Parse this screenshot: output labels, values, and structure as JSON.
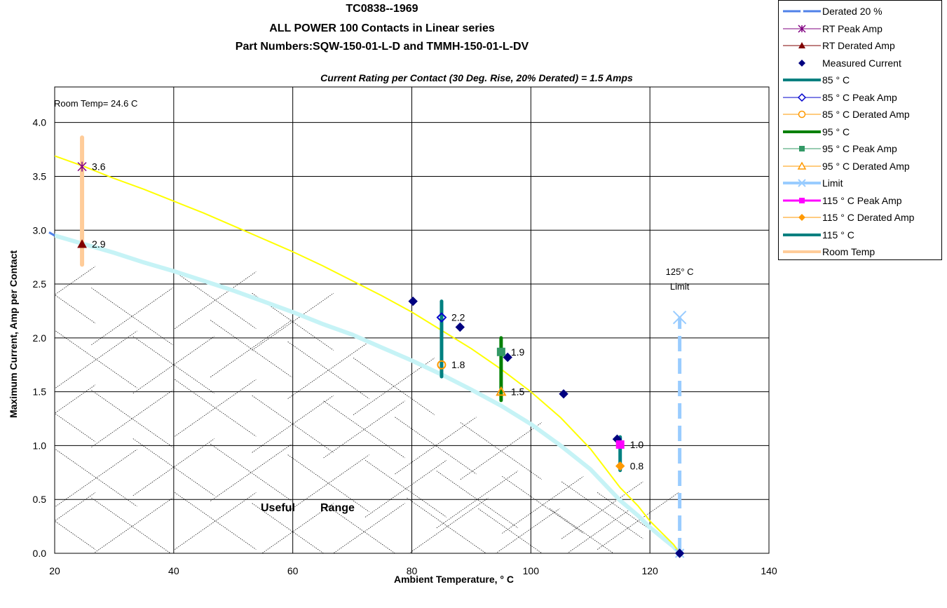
{
  "chart_data": {
    "type": "scatter",
    "title": "TC0838--1969",
    "title_line2": "ALL POWER 100 Contacts in Linear series",
    "title_line3": "Part Numbers:SQW-150-01-L-D and TMMH-150-01-L-DV",
    "subtitle": "Current Rating per Contact (30 Deg. Rise, 20% Derated) = 1.5 Amps",
    "xlabel": "Ambient Temperature, ° C",
    "ylabel": "Maximum Current, Amp per Contact",
    "xlim": [
      20,
      140
    ],
    "ylim": [
      0,
      4.0
    ],
    "x_ticks": [
      "20",
      "40",
      "60",
      "80",
      "100",
      "120",
      "140"
    ],
    "y_ticks": [
      "0.0",
      "0.5",
      "1.0",
      "1.5",
      "2.0",
      "2.5",
      "3.0",
      "3.5",
      "4.0"
    ],
    "grid": true,
    "legend_position": "top-right",
    "annotations": {
      "room_temp": "Room Temp= 24.6 C",
      "limit_line1": "125° C",
      "limit_line2": "Limit",
      "useful": "Useful",
      "range": "Range"
    },
    "peak_curve": {
      "color": "#ffff00",
      "x": [
        20,
        25,
        30,
        35,
        40,
        45,
        50,
        55,
        60,
        65,
        70,
        75,
        80,
        85,
        90,
        95,
        100,
        105,
        110,
        115,
        118,
        120,
        122,
        124,
        125
      ],
      "y": [
        3.69,
        3.59,
        3.48,
        3.38,
        3.27,
        3.16,
        3.04,
        2.92,
        2.8,
        2.67,
        2.53,
        2.39,
        2.24,
        2.07,
        1.9,
        1.71,
        1.5,
        1.26,
        0.97,
        0.61,
        0.44,
        0.3,
        0.19,
        0.08,
        0.0
      ]
    },
    "derated_curve": {
      "color": "#c6f3f6",
      "x": [
        18,
        20,
        25,
        30,
        35,
        40,
        45,
        50,
        55,
        60,
        65,
        70,
        75,
        80,
        85,
        90,
        95,
        100,
        105,
        110,
        115,
        118,
        120,
        122,
        124,
        125
      ],
      "y": [
        2.98,
        2.95,
        2.87,
        2.79,
        2.7,
        2.62,
        2.53,
        2.44,
        2.34,
        2.24,
        2.13,
        2.03,
        1.91,
        1.79,
        1.66,
        1.52,
        1.37,
        1.2,
        1.0,
        0.78,
        0.49,
        0.35,
        0.24,
        0.15,
        0.06,
        0.0
      ]
    },
    "series": [
      {
        "name": "Derated 20 %",
        "color": "#4f81e8",
        "marker": "line",
        "x": [
          18,
          20
        ],
        "y": [
          2.98,
          2.95
        ]
      },
      {
        "name": "RT Peak Amp",
        "color": "#800080",
        "marker": "star",
        "x": [
          24.6
        ],
        "y": [
          3.59
        ],
        "label": "3.6"
      },
      {
        "name": "RT Derated Amp",
        "color": "#800000",
        "marker": "triangle",
        "x": [
          24.6
        ],
        "y": [
          2.87
        ],
        "label": "2.9"
      },
      {
        "name": "Measured Current",
        "color": "#000080",
        "marker": "diamond",
        "x": [
          80.2,
          88.1,
          96.1,
          105.5,
          114.5,
          125
        ],
        "y": [
          2.34,
          2.1,
          1.82,
          1.48,
          1.06,
          0.0
        ]
      },
      {
        "name": "85 ° C",
        "color": "#008080",
        "marker": "bar",
        "x": [
          85,
          85
        ],
        "y": [
          1.64,
          2.34
        ]
      },
      {
        "name": "85  ° C Peak Amp",
        "color": "#0000cc",
        "marker": "open-diamond",
        "x": [
          85
        ],
        "y": [
          2.19
        ],
        "label": "2.2"
      },
      {
        "name": "85  ° C Derated Amp",
        "color": "#ff9900",
        "marker": "open-circle",
        "x": [
          85
        ],
        "y": [
          1.75
        ],
        "label": "1.8"
      },
      {
        "name": "95  ° C",
        "color": "#008000",
        "marker": "bar",
        "x": [
          95,
          95
        ],
        "y": [
          1.42,
          2.0
        ]
      },
      {
        "name": "95  ° C Peak Amp",
        "color": "#339966",
        "marker": "square",
        "x": [
          95
        ],
        "y": [
          1.87
        ],
        "label": "1.9"
      },
      {
        "name": "95  ° C Derated Amp",
        "color": "#ff9900",
        "marker": "open-triangle",
        "x": [
          95
        ],
        "y": [
          1.5
        ],
        "label": "1.5"
      },
      {
        "name": "Limit",
        "color": "#99ccff",
        "marker": "dashed",
        "x": [
          125,
          125
        ],
        "y": [
          0.0,
          2.19
        ]
      },
      {
        "name": "115  ° C Peak Amp",
        "color": "#ff00ff",
        "marker": "square",
        "x": [
          115
        ],
        "y": [
          1.01
        ],
        "label": "1.0"
      },
      {
        "name": "115  ° C Derated Amp",
        "color": "#ff9900",
        "marker": "diamond",
        "x": [
          115
        ],
        "y": [
          0.81
        ],
        "label": "0.8"
      },
      {
        "name": "115  ° C",
        "color": "#008080",
        "marker": "bar",
        "x": [
          115,
          115
        ],
        "y": [
          0.77,
          1.08
        ]
      },
      {
        "name": "Room Temp",
        "color": "#ffcc99",
        "marker": "bar",
        "x": [
          24.6,
          24.6
        ],
        "y": [
          2.68,
          3.86
        ]
      }
    ]
  }
}
